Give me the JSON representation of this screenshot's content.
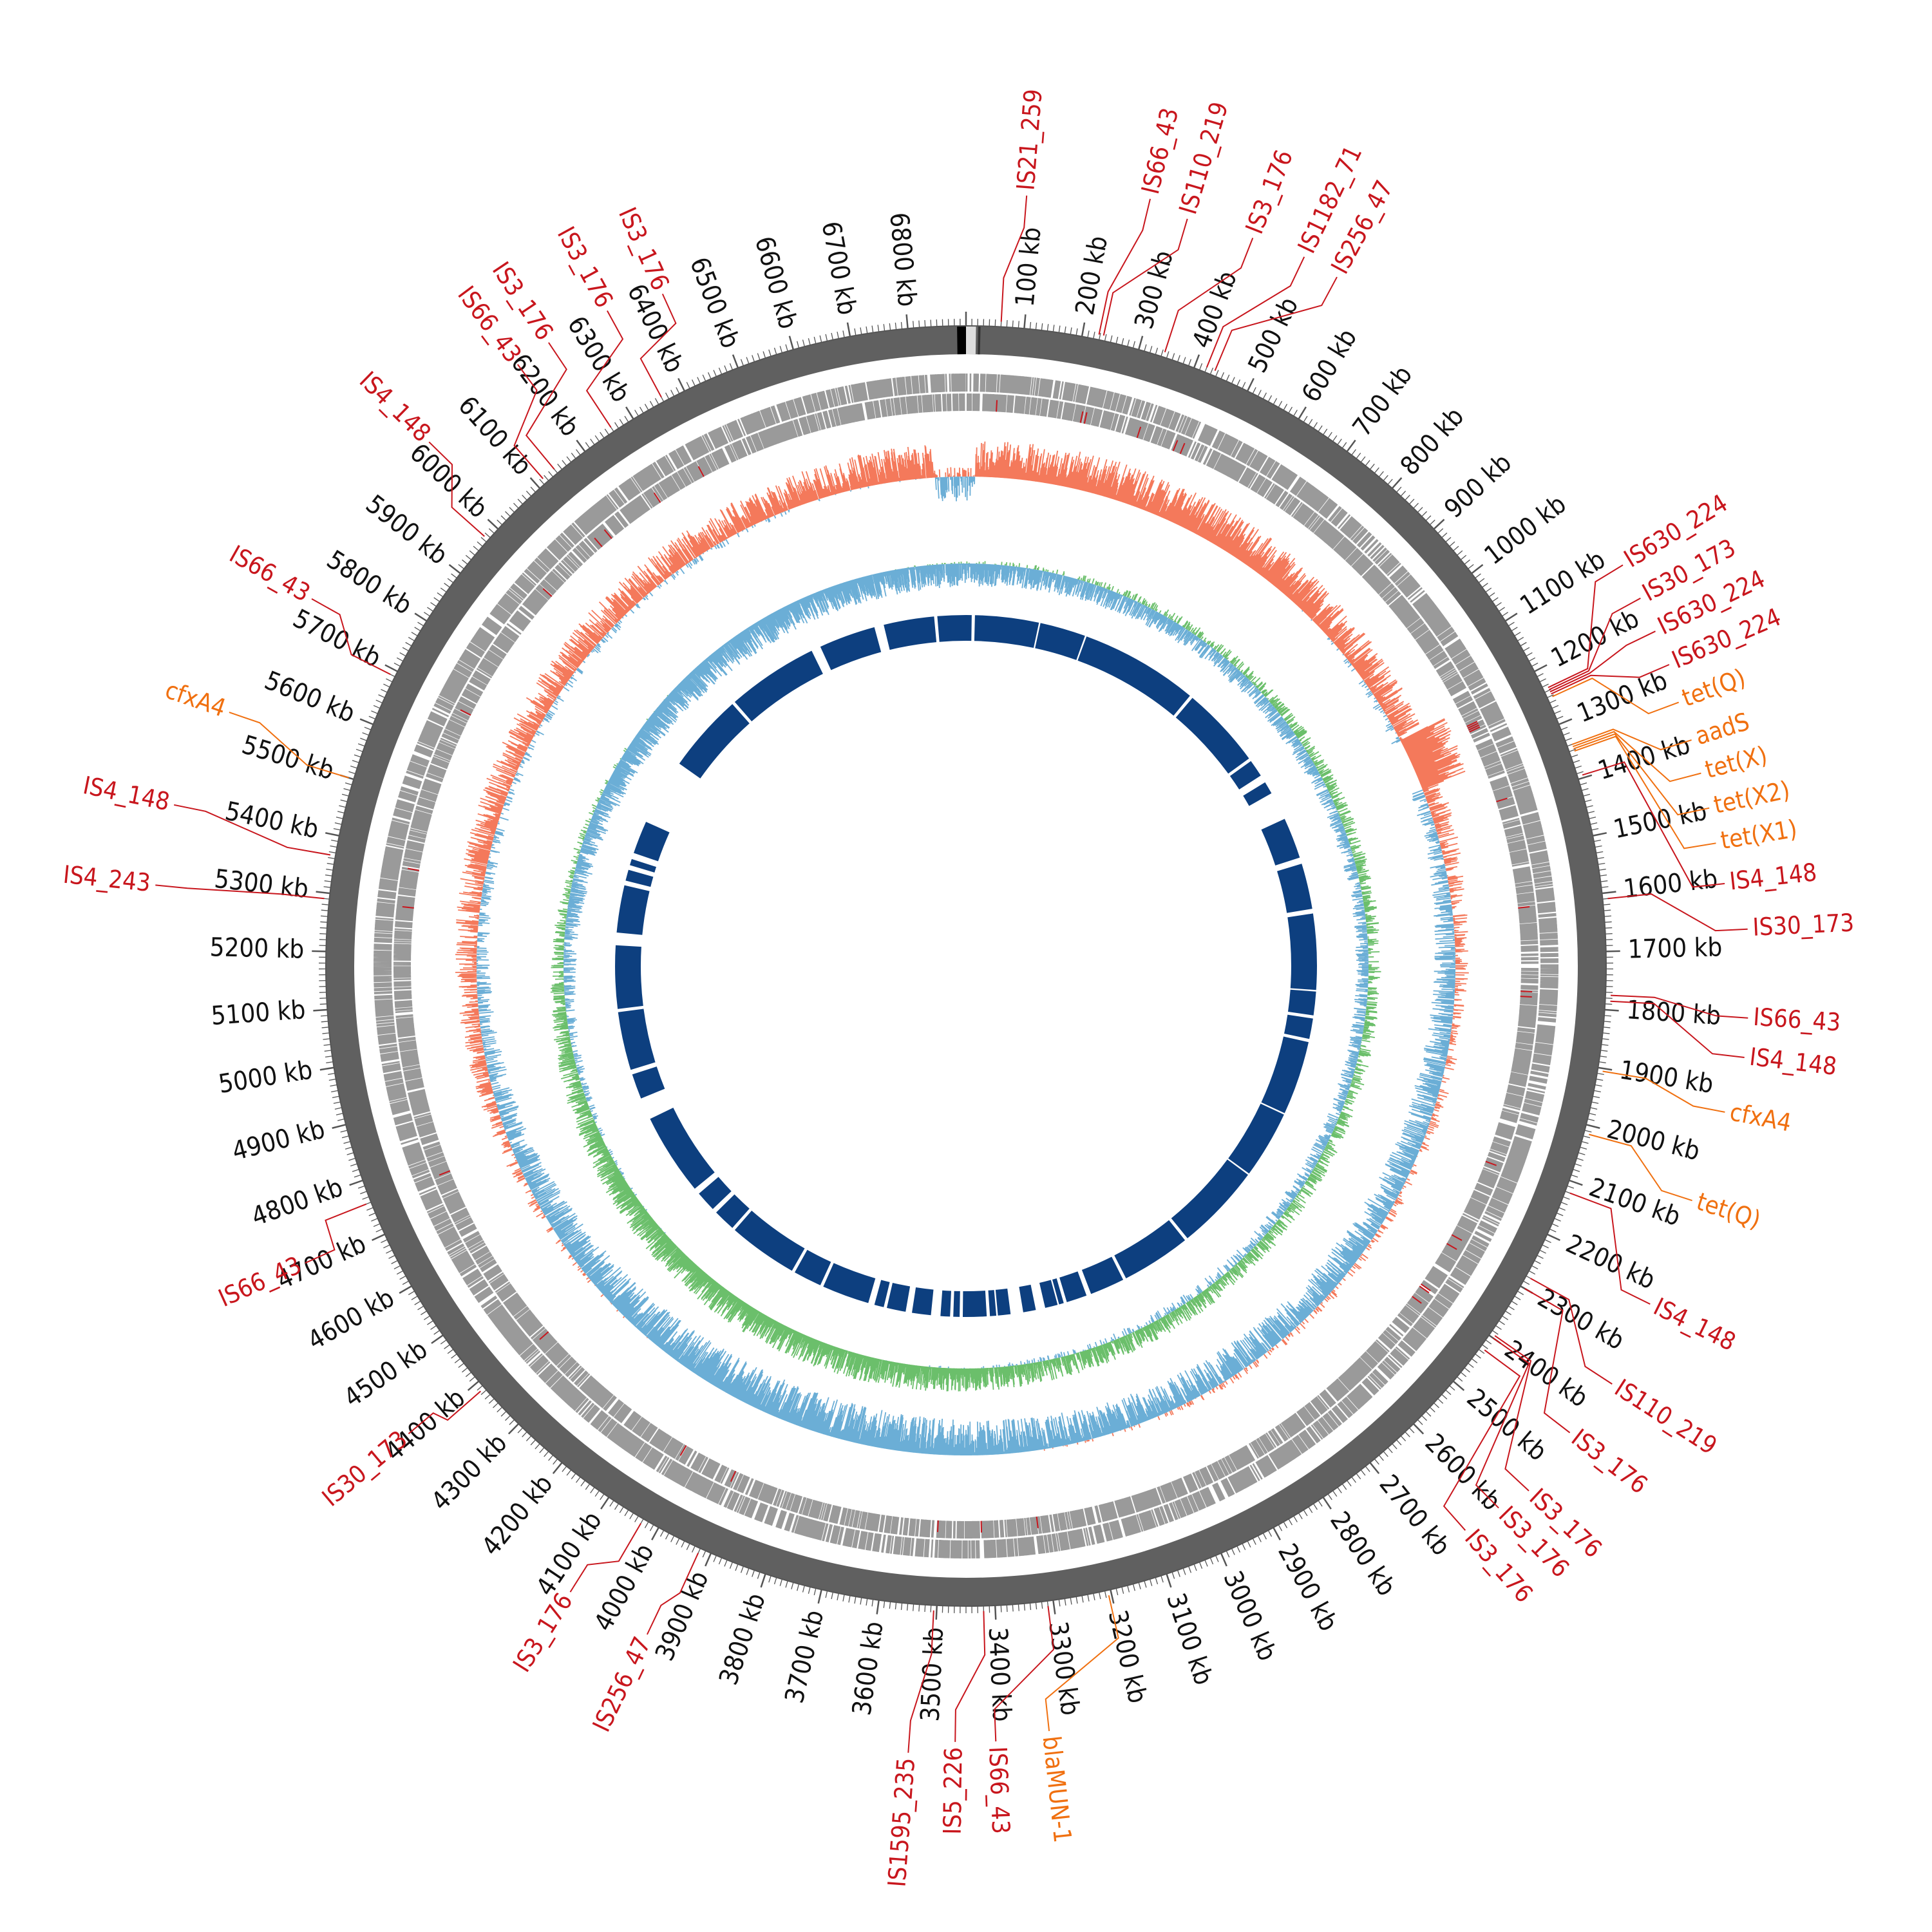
{
  "genome": {
    "length_kb": 6900,
    "tick_step_kb": 100,
    "tick_labels": [
      "100 kb",
      "200 kb",
      "300 kb",
      "400 kb",
      "500 kb",
      "600 kb",
      "700 kb",
      "800 kb",
      "900 kb",
      "1000 kb",
      "1100 kb",
      "1200 kb",
      "1300 kb",
      "1400 kb",
      "1500 kb",
      "1600 kb",
      "1700 kb",
      "1800 kb",
      "1900 kb",
      "2000 kb",
      "2100 kb",
      "2200 kb",
      "2300 kb",
      "2400 kb",
      "2500 kb",
      "2600 kb",
      "2700 kb",
      "2800 kb",
      "2900 kb",
      "3000 kb",
      "3100 kb",
      "3200 kb",
      "3300 kb",
      "3400 kb",
      "3500 kb",
      "3600 kb",
      "3700 kb",
      "3800 kb",
      "3900 kb",
      "4000 kb",
      "4100 kb",
      "4200 kb",
      "4300 kb",
      "4400 kb",
      "4500 kb",
      "4600 kb",
      "4700 kb",
      "4800 kb",
      "4900 kb",
      "5000 kb",
      "5100 kb",
      "5200 kb",
      "5300 kb",
      "5400 kb",
      "5500 kb",
      "5600 kb",
      "5700 kb",
      "5800 kb",
      "5900 kb",
      "6000 kb",
      "6100 kb",
      "6200 kb",
      "6300 kb",
      "6400 kb",
      "6500 kb",
      "6600 kb",
      "6700 kb",
      "6800 kb"
    ]
  },
  "colors": {
    "backbone": "#606060",
    "cds": "#9a9a9a",
    "gc_positive": "#f4795b",
    "gc_negative": "#6baed6",
    "skew_positive": "#6bbf6b",
    "skew_negative": "#6baed6",
    "blocks": "#0d3f7f",
    "is_label": "#c8161d",
    "arg_label": "#f07010"
  },
  "mobile_elements": [
    {
      "label": "IS21_259",
      "kb": 60
    },
    {
      "label": "IS66_43",
      "kb": 228
    },
    {
      "label": "IS110_219",
      "kb": 236
    },
    {
      "label": "IS3_176",
      "kb": 344
    },
    {
      "label": "IS1182_71",
      "kb": 420
    },
    {
      "label": "IS256_47",
      "kb": 435
    },
    {
      "label": "IS630_224",
      "kb": 1235
    },
    {
      "label": "IS30_173",
      "kb": 1239
    },
    {
      "label": "IS630_224",
      "kb": 1243
    },
    {
      "label": "IS630_224",
      "kb": 1247
    },
    {
      "label": "IS4_148",
      "kb": 1395
    },
    {
      "label": "IS30_173",
      "kb": 1610
    },
    {
      "label": "IS66_43",
      "kb": 1775
    },
    {
      "label": "IS4_148",
      "kb": 1785
    },
    {
      "label": "IS4_148",
      "kb": 2120
    },
    {
      "label": "IS110_219",
      "kb": 2280
    },
    {
      "label": "IS3_176",
      "kb": 2300
    },
    {
      "label": "IS3_176",
      "kb": 2395
    },
    {
      "label": "IS3_176",
      "kb": 2400
    },
    {
      "label": "IS3_176",
      "kb": 2425
    },
    {
      "label": "IS66_43",
      "kb": 3310
    },
    {
      "label": "IS5_226",
      "kb": 3420
    },
    {
      "label": "IS1595_235",
      "kb": 3505
    },
    {
      "label": "IS256_47",
      "kb": 3920
    },
    {
      "label": "IS3_176",
      "kb": 4030
    },
    {
      "label": "IS30_173",
      "kb": 4385
    },
    {
      "label": "IS66_43",
      "kb": 4760
    },
    {
      "label": "IS4_243",
      "kb": 5290
    },
    {
      "label": "IS4_148",
      "kb": 5365
    },
    {
      "label": "IS66_43",
      "kb": 5690
    },
    {
      "label": "IS4_148",
      "kb": 5975
    },
    {
      "label": "IS66_43",
      "kb": 6115
    },
    {
      "label": "IS3_176",
      "kb": 6140
    },
    {
      "label": "IS3_176",
      "kb": 6260
    },
    {
      "label": "IS3_176",
      "kb": 6360
    }
  ],
  "resistance_genes": [
    {
      "label": "tet(Q)",
      "kb": 1252
    },
    {
      "label": "aadS",
      "kb": 1340
    },
    {
      "label": "tet(X)",
      "kb": 1344
    },
    {
      "label": "tet(X2)",
      "kb": 1348
    },
    {
      "label": "tet(X1)",
      "kb": 1352
    },
    {
      "label": "cfxA4",
      "kb": 1905
    },
    {
      "label": "tet(Q)",
      "kb": 2015
    },
    {
      "label": "blaMUN-1",
      "kb": 3205
    },
    {
      "label": "cfxA4",
      "kb": 5500
    }
  ],
  "label_placements": {
    "IS21_259@60": {
      "ang": 4.5,
      "r": 1200
    },
    "IS66_43@228": {
      "ang": 13.5,
      "r": 1225
    },
    "IS110_219@236": {
      "ang": 16.5,
      "r": 1210
    },
    "IS3_176@344": {
      "ang": 21.5,
      "r": 1215
    },
    "IS1182_71@420": {
      "ang": 25.5,
      "r": 1220
    },
    "IS256_47@435": {
      "ang": 28.3,
      "r": 1215
    },
    "IS630_224@1235": {
      "ang": 58.6,
      "r": 1195
    },
    "IS30_173@1239": {
      "ang": 61.4,
      "r": 1193
    },
    "IS630_224@1243": {
      "ang": 64.1,
      "r": 1190
    },
    "IS630_224@1247": {
      "ang": 66.8,
      "r": 1188
    },
    "tet(Q)@1252": {
      "ang": 69.7,
      "r": 1180
    },
    "aadS@1340": {
      "ang": 72.7,
      "r": 1180
    },
    "tet(X)@1344": {
      "ang": 75.3,
      "r": 1180
    },
    "tet(X2)@1348": {
      "ang": 78,
      "r": 1180
    },
    "tet(X1)@1352": {
      "ang": 80.7,
      "r": 1180
    },
    "IS4_148@1395": {
      "ang": 83.8,
      "r": 1185
    },
    "IS30_173@1610": {
      "ang": 87.3,
      "r": 1215
    },
    "IS66_43@1775": {
      "ang": 93.8,
      "r": 1217
    },
    "IS4_148@1785": {
      "ang": 96.7,
      "r": 1217
    },
    "cfxA4@1905": {
      "ang": 100.9,
      "r": 1200
    },
    "tet(Q)@2015": {
      "ang": 107.9,
      "r": 1185
    },
    "IS4_148@2120": {
      "ang": 116.3,
      "r": 1185
    },
    "IS110_219@2280": {
      "ang": 122.9,
      "r": 1195
    },
    "IS3_176@2300": {
      "ang": 127.7,
      "r": 1185
    },
    "IS3_176@2395": {
      "ang": 133,
      "r": 1195
    },
    "IS3_176@2400": {
      "ang": 135.5,
      "r": 1180
    },
    "IS3_176@2425": {
      "ang": 138.5,
      "r": 1170
    },
    "blaMUN-1@3205": {
      "ang": 173.8,
      "r": 1195
    },
    "IS66_43@3310": {
      "ang": 177.8,
      "r": 1205
    },
    "IS5_226@3420": {
      "ang": 180.8,
      "r": 1205
    },
    "IS1595_235@3505": {
      "ang": 184.2,
      "r": 1225
    },
    "IS256_47@3920": {
      "ang": 205.5,
      "r": 1150
    },
    "IS3_176@4030": {
      "ang": 212.3,
      "r": 1150
    },
    "IS30_173@4385": {
      "ang": 230,
      "r": 1130
    },
    "IS66_43@4760": {
      "ang": 245.8,
      "r": 1125
    },
    "IS4_243@5290": {
      "ang": 275.7,
      "r": 1265
    },
    "IS4_148@5365": {
      "ang": 281.5,
      "r": 1255
    },
    "cfxA4@5500": {
      "ang": 289,
      "r": 1210
    },
    "IS66_43@5690": {
      "ang": 299.3,
      "r": 1165
    },
    "IS4_148@5975": {
      "ang": 314.3,
      "r": 1165
    },
    "IS66_43@6115": {
      "ang": 323.3,
      "r": 1165
    },
    "IS3_176@6140": {
      "ang": 326.2,
      "r": 1165
    },
    "IS3_176@6260": {
      "ang": 331.3,
      "r": 1160
    },
    "IS3_176@6360": {
      "ang": 335.7,
      "r": 1145
    }
  },
  "synteny_blocks_kb": [
    [
      0,
      18
    ],
    [
      28,
      230
    ],
    [
      235,
      380
    ],
    [
      385,
      760
    ],
    [
      770,
      1030
    ],
    [
      1040,
      1095
    ],
    [
      1120,
      1160
    ],
    [
      1250,
      1380
    ],
    [
      1400,
      1545
    ],
    [
      1560,
      1800
    ],
    [
      1805,
      1880
    ],
    [
      1890,
      1955
    ],
    [
      1965,
      2200
    ],
    [
      2205,
      2420
    ],
    [
      2425,
      2700
    ],
    [
      2710,
      2930
    ],
    [
      2940,
      3050
    ],
    [
      3065,
      3130
    ],
    [
      3140,
      3155
    ],
    [
      3160,
      3200
    ],
    [
      3230,
      3270
    ],
    [
      3310,
      3350
    ],
    [
      3355,
      3375
    ],
    [
      3385,
      3460
    ],
    [
      3470,
      3490
    ],
    [
      3500,
      3530
    ],
    [
      3560,
      3620
    ],
    [
      3640,
      3700
    ],
    [
      3710,
      3740
    ],
    [
      3760,
      3910
    ],
    [
      3920,
      4010
    ],
    [
      4020,
      4240
    ],
    [
      4250,
      4320
    ],
    [
      4335,
      4400
    ],
    [
      4420,
      4680
    ],
    [
      4750,
      4830
    ],
    [
      4845,
      5030
    ],
    [
      5040,
      5240
    ],
    [
      5280,
      5430
    ],
    [
      5445,
      5480
    ],
    [
      5495,
      5515
    ],
    [
      5535,
      5640
    ],
    [
      5850,
      6100
    ],
    [
      6110,
      6400
    ],
    [
      6430,
      6610
    ],
    [
      6640,
      6800
    ],
    [
      6810,
      6900
    ]
  ]
}
